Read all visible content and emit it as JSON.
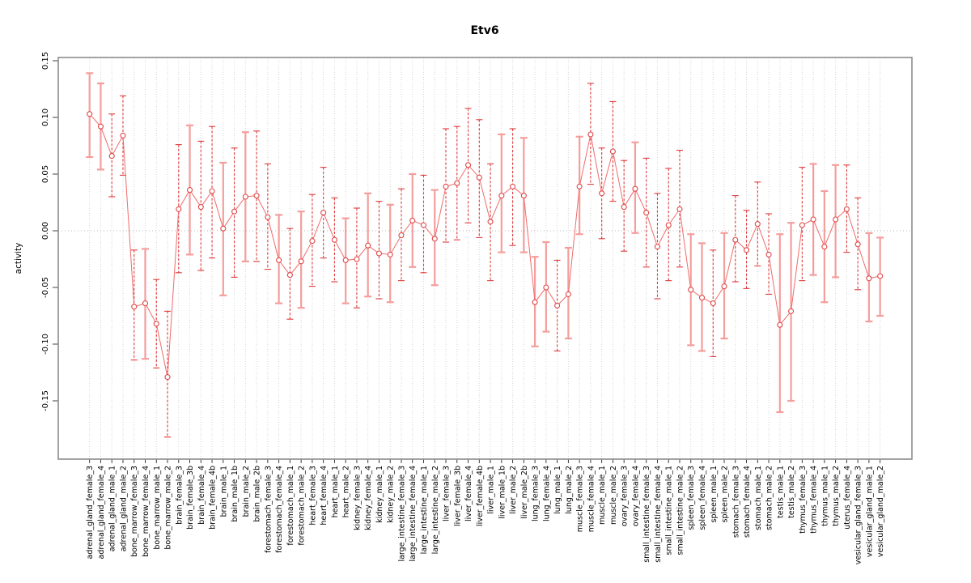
{
  "title": "Etv6",
  "axes": {
    "ylabel": "activity",
    "ytick_values": [
      0.15,
      0.1,
      0.05,
      0.0,
      -0.05,
      -0.1,
      -0.15
    ],
    "ytick_labels": [
      "0.15",
      "0.10",
      "0.05",
      "0.00",
      "-0.05",
      "-0.10",
      "-0.15"
    ]
  },
  "colors": {
    "point_stroke": "#e04646",
    "point_fill": "#ffffff",
    "series_line": "#ef6b6b",
    "bar_dashed": "#e13b3b",
    "bar_solid": "#f49e9c",
    "grid": "#d4d4d4",
    "zero_line": "#b8b8b8",
    "box": "#8c8c8c",
    "tick": "#2b2b2b",
    "text": "#000000"
  },
  "chart_data": {
    "type": "line",
    "subtype": "points-with-error-bars",
    "title": "Etv6",
    "xlabel": "",
    "ylabel": "activity",
    "ylim": [
      -0.2,
      0.153
    ],
    "zero_reference_line": 0.0,
    "grid": "vertical dotted gridline at every category; dotted horizontal line at y=0",
    "legend_position": "none",
    "categories": [
      "adrenal_gland_female_3",
      "adrenal_gland_female_4",
      "adrenal_gland_male_1",
      "adrenal_gland_male_2",
      "bone_marrow_female_3",
      "bone_marrow_female_4",
      "bone_marrow_male_1",
      "bone_marrow_male_2",
      "brain_female_3",
      "brain_female_3b",
      "brain_female_4",
      "brain_female_4b",
      "brain_male_1",
      "brain_male_1b",
      "brain_male_2",
      "brain_male_2b",
      "forestomach_female_3",
      "forestomach_female_4",
      "forestomach_male_1",
      "forestomach_male_2",
      "heart_female_3",
      "heart_female_4",
      "heart_male_1",
      "heart_male_2",
      "kidney_female_3",
      "kidney_female_4",
      "kidney_male_1",
      "kidney_male_2",
      "large_intestine_female_3",
      "large_intestine_female_4",
      "large_intestine_male_1",
      "large_intestine_male_2",
      "liver_female_3",
      "liver_female_3b",
      "liver_female_4",
      "liver_female_4b",
      "liver_male_1",
      "liver_male_1b",
      "liver_male_2",
      "liver_male_2b",
      "lung_female_3",
      "lung_female_4",
      "lung_male_1",
      "lung_male_2",
      "muscle_female_3",
      "muscle_female_4",
      "muscle_male_1",
      "muscle_male_2",
      "ovary_female_3",
      "ovary_female_4",
      "small_intestine_female_3",
      "small_intestine_female_4",
      "small_intestine_male_1",
      "small_intestine_male_2",
      "spleen_female_3",
      "spleen_female_4",
      "spleen_male_1",
      "spleen_male_2",
      "stomach_female_3",
      "stomach_female_4",
      "stomach_male_1",
      "stomach_male_2",
      "testis_male_1",
      "testis_male_2",
      "thymus_female_3",
      "thymus_female_4",
      "thymus_male_1",
      "thymus_male_2",
      "uterus_female_4",
      "vesicular_gland_female_3",
      "vesicular_gland_male_1",
      "vesicular_gland_male_2"
    ],
    "series": [
      {
        "name": "activity",
        "values": [
          0.103,
          0.092,
          0.066,
          0.084,
          -0.067,
          -0.064,
          -0.082,
          -0.129,
          0.019,
          0.036,
          0.021,
          0.035,
          0.002,
          0.017,
          0.03,
          0.031,
          0.012,
          -0.026,
          -0.039,
          -0.027,
          -0.009,
          0.016,
          -0.008,
          -0.026,
          -0.025,
          -0.013,
          -0.02,
          -0.021,
          -0.004,
          0.009,
          0.005,
          -0.007,
          0.039,
          0.042,
          0.058,
          0.047,
          0.008,
          0.031,
          0.039,
          0.031,
          -0.063,
          -0.05,
          -0.066,
          -0.056,
          0.039,
          0.085,
          0.033,
          0.07,
          0.021,
          0.037,
          0.016,
          -0.014,
          0.005,
          0.019,
          -0.052,
          -0.059,
          -0.064,
          -0.049,
          -0.008,
          -0.017,
          0.006,
          -0.021,
          -0.083,
          -0.071,
          0.005,
          0.01,
          -0.014,
          0.01,
          0.019,
          -0.012,
          -0.042,
          -0.04
        ],
        "error_high": [
          0.139,
          0.13,
          0.103,
          0.119,
          -0.017,
          -0.016,
          -0.043,
          -0.071,
          0.076,
          0.093,
          0.079,
          0.092,
          0.06,
          0.073,
          0.087,
          0.088,
          0.059,
          0.014,
          0.002,
          0.017,
          0.032,
          0.056,
          0.029,
          0.011,
          0.02,
          0.033,
          0.026,
          0.023,
          0.037,
          0.05,
          0.049,
          0.036,
          0.09,
          0.092,
          0.108,
          0.098,
          0.059,
          0.085,
          0.09,
          0.082,
          -0.023,
          -0.01,
          -0.026,
          -0.015,
          0.083,
          0.13,
          0.073,
          0.114,
          0.062,
          0.078,
          0.064,
          0.033,
          0.055,
          0.071,
          -0.003,
          -0.011,
          -0.017,
          -0.002,
          0.031,
          0.018,
          0.043,
          0.015,
          -0.003,
          0.007,
          0.056,
          0.059,
          0.035,
          0.058,
          0.058,
          0.029,
          -0.002,
          -0.006
        ],
        "error_low": [
          0.065,
          0.054,
          0.03,
          0.049,
          -0.114,
          -0.113,
          -0.121,
          -0.182,
          -0.037,
          -0.021,
          -0.035,
          -0.024,
          -0.057,
          -0.041,
          -0.027,
          -0.027,
          -0.034,
          -0.064,
          -0.078,
          -0.068,
          -0.049,
          -0.024,
          -0.045,
          -0.064,
          -0.068,
          -0.058,
          -0.06,
          -0.063,
          -0.044,
          -0.032,
          -0.037,
          -0.048,
          -0.01,
          -0.008,
          0.007,
          -0.006,
          -0.044,
          -0.019,
          -0.013,
          -0.019,
          -0.102,
          -0.089,
          -0.106,
          -0.095,
          -0.003,
          0.041,
          -0.007,
          0.026,
          -0.018,
          -0.002,
          -0.032,
          -0.06,
          -0.044,
          -0.032,
          -0.101,
          -0.106,
          -0.111,
          -0.095,
          -0.045,
          -0.051,
          -0.031,
          -0.056,
          -0.16,
          -0.15,
          -0.044,
          -0.039,
          -0.063,
          -0.041,
          -0.019,
          -0.052,
          -0.08,
          -0.075
        ],
        "bar_styles": [
          "solid",
          "solid",
          "dashed",
          "dashed",
          "dashed",
          "solid",
          "dashed",
          "dashed",
          "dashed",
          "solid",
          "dashed",
          "dashed",
          "solid",
          "dashed",
          "solid",
          "dashed",
          "dashed",
          "solid",
          "dashed",
          "solid",
          "dashed",
          "dashed",
          "dashed",
          "solid",
          "dashed",
          "solid",
          "dashed",
          "solid",
          "dashed",
          "solid",
          "dashed",
          "solid",
          "dashed",
          "dashed",
          "dashed",
          "dashed",
          "dashed",
          "solid",
          "dashed",
          "solid",
          "solid",
          "solid",
          "dashed",
          "solid",
          "solid",
          "dashed",
          "dashed",
          "dashed",
          "dashed",
          "solid",
          "dashed",
          "dashed",
          "dashed",
          "dashed",
          "solid",
          "solid",
          "dashed",
          "solid",
          "dashed",
          "dashed",
          "dashed",
          "dashed",
          "solid",
          "solid",
          "dashed",
          "solid",
          "solid",
          "solid",
          "dashed",
          "dashed",
          "solid",
          "solid"
        ]
      }
    ]
  }
}
